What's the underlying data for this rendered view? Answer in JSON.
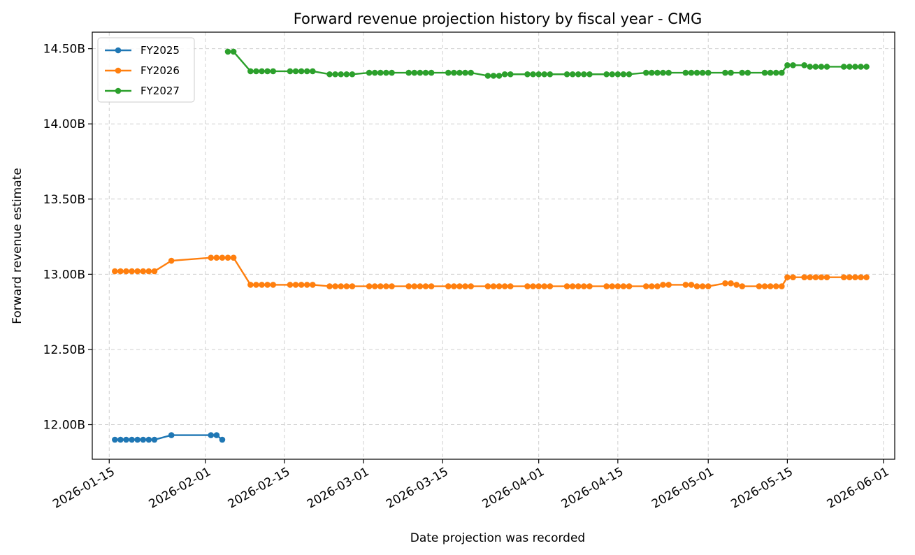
{
  "chart_data": {
    "type": "line",
    "title": "Forward revenue projection history by fiscal year - CMG",
    "xlabel": "Date projection was recorded",
    "ylabel": "Forward revenue estimate",
    "x_type": "date",
    "xlim": [
      "2026-01-12",
      "2026-06-03"
    ],
    "ylim": [
      11.77,
      14.61
    ],
    "y_unit_suffix": "B",
    "x_ticks": [
      "2026-01-15",
      "2026-02-01",
      "2026-02-15",
      "2026-03-01",
      "2026-03-15",
      "2026-04-01",
      "2026-04-15",
      "2026-05-01",
      "2026-05-15",
      "2026-06-01"
    ],
    "y_ticks": [
      12.0,
      12.5,
      13.0,
      13.5,
      14.0,
      14.5
    ],
    "y_tick_labels": [
      "12.00B",
      "12.50B",
      "13.00B",
      "13.50B",
      "14.00B",
      "14.50B"
    ],
    "grid": true,
    "legend_position": "top-left",
    "series": [
      {
        "name": "FY2025",
        "color": "#1f77b4",
        "points": [
          [
            "2026-01-16",
            11.9
          ],
          [
            "2026-01-17",
            11.9
          ],
          [
            "2026-01-18",
            11.9
          ],
          [
            "2026-01-19",
            11.9
          ],
          [
            "2026-01-20",
            11.9
          ],
          [
            "2026-01-21",
            11.9
          ],
          [
            "2026-01-22",
            11.9
          ],
          [
            "2026-01-23",
            11.9
          ],
          [
            "2026-01-26",
            11.93
          ],
          [
            "2026-02-02",
            11.93
          ],
          [
            "2026-02-03",
            11.93
          ],
          [
            "2026-02-04",
            11.9
          ]
        ]
      },
      {
        "name": "FY2026",
        "color": "#ff7f0e",
        "points": [
          [
            "2026-01-16",
            13.02
          ],
          [
            "2026-01-17",
            13.02
          ],
          [
            "2026-01-18",
            13.02
          ],
          [
            "2026-01-19",
            13.02
          ],
          [
            "2026-01-20",
            13.02
          ],
          [
            "2026-01-21",
            13.02
          ],
          [
            "2026-01-22",
            13.02
          ],
          [
            "2026-01-23",
            13.02
          ],
          [
            "2026-01-26",
            13.09
          ],
          [
            "2026-02-02",
            13.11
          ],
          [
            "2026-02-03",
            13.11
          ],
          [
            "2026-02-04",
            13.11
          ],
          [
            "2026-02-05",
            13.11
          ],
          [
            "2026-02-06",
            13.11
          ],
          [
            "2026-02-09",
            12.93
          ],
          [
            "2026-02-10",
            12.93
          ],
          [
            "2026-02-11",
            12.93
          ],
          [
            "2026-02-12",
            12.93
          ],
          [
            "2026-02-13",
            12.93
          ],
          [
            "2026-02-16",
            12.93
          ],
          [
            "2026-02-17",
            12.93
          ],
          [
            "2026-02-18",
            12.93
          ],
          [
            "2026-02-19",
            12.93
          ],
          [
            "2026-02-20",
            12.93
          ],
          [
            "2026-02-23",
            12.92
          ],
          [
            "2026-02-24",
            12.92
          ],
          [
            "2026-02-25",
            12.92
          ],
          [
            "2026-02-26",
            12.92
          ],
          [
            "2026-02-27",
            12.92
          ],
          [
            "2026-03-02",
            12.92
          ],
          [
            "2026-03-03",
            12.92
          ],
          [
            "2026-03-04",
            12.92
          ],
          [
            "2026-03-05",
            12.92
          ],
          [
            "2026-03-06",
            12.92
          ],
          [
            "2026-03-09",
            12.92
          ],
          [
            "2026-03-10",
            12.92
          ],
          [
            "2026-03-11",
            12.92
          ],
          [
            "2026-03-12",
            12.92
          ],
          [
            "2026-03-13",
            12.92
          ],
          [
            "2026-03-16",
            12.92
          ],
          [
            "2026-03-17",
            12.92
          ],
          [
            "2026-03-18",
            12.92
          ],
          [
            "2026-03-19",
            12.92
          ],
          [
            "2026-03-20",
            12.92
          ],
          [
            "2026-03-23",
            12.92
          ],
          [
            "2026-03-24",
            12.92
          ],
          [
            "2026-03-25",
            12.92
          ],
          [
            "2026-03-26",
            12.92
          ],
          [
            "2026-03-27",
            12.92
          ],
          [
            "2026-03-30",
            12.92
          ],
          [
            "2026-03-31",
            12.92
          ],
          [
            "2026-04-01",
            12.92
          ],
          [
            "2026-04-02",
            12.92
          ],
          [
            "2026-04-03",
            12.92
          ],
          [
            "2026-04-06",
            12.92
          ],
          [
            "2026-04-07",
            12.92
          ],
          [
            "2026-04-08",
            12.92
          ],
          [
            "2026-04-09",
            12.92
          ],
          [
            "2026-04-10",
            12.92
          ],
          [
            "2026-04-13",
            12.92
          ],
          [
            "2026-04-14",
            12.92
          ],
          [
            "2026-04-15",
            12.92
          ],
          [
            "2026-04-16",
            12.92
          ],
          [
            "2026-04-17",
            12.92
          ],
          [
            "2026-04-20",
            12.92
          ],
          [
            "2026-04-21",
            12.92
          ],
          [
            "2026-04-22",
            12.92
          ],
          [
            "2026-04-23",
            12.93
          ],
          [
            "2026-04-24",
            12.93
          ],
          [
            "2026-04-27",
            12.93
          ],
          [
            "2026-04-28",
            12.93
          ],
          [
            "2026-04-29",
            12.92
          ],
          [
            "2026-04-30",
            12.92
          ],
          [
            "2026-05-01",
            12.92
          ],
          [
            "2026-05-04",
            12.94
          ],
          [
            "2026-05-05",
            12.94
          ],
          [
            "2026-05-06",
            12.93
          ],
          [
            "2026-05-07",
            12.92
          ],
          [
            "2026-05-10",
            12.92
          ],
          [
            "2026-05-11",
            12.92
          ],
          [
            "2026-05-12",
            12.92
          ],
          [
            "2026-05-13",
            12.92
          ],
          [
            "2026-05-14",
            12.92
          ],
          [
            "2026-05-15",
            12.98
          ],
          [
            "2026-05-16",
            12.98
          ],
          [
            "2026-05-18",
            12.98
          ],
          [
            "2026-05-19",
            12.98
          ],
          [
            "2026-05-20",
            12.98
          ],
          [
            "2026-05-21",
            12.98
          ],
          [
            "2026-05-22",
            12.98
          ],
          [
            "2026-05-25",
            12.98
          ],
          [
            "2026-05-26",
            12.98
          ],
          [
            "2026-05-27",
            12.98
          ],
          [
            "2026-05-28",
            12.98
          ],
          [
            "2026-05-29",
            12.98
          ]
        ]
      },
      {
        "name": "FY2027",
        "color": "#2ca02c",
        "points": [
          [
            "2026-02-05",
            14.48
          ],
          [
            "2026-02-06",
            14.48
          ],
          [
            "2026-02-09",
            14.35
          ],
          [
            "2026-02-10",
            14.35
          ],
          [
            "2026-02-11",
            14.35
          ],
          [
            "2026-02-12",
            14.35
          ],
          [
            "2026-02-13",
            14.35
          ],
          [
            "2026-02-16",
            14.35
          ],
          [
            "2026-02-17",
            14.35
          ],
          [
            "2026-02-18",
            14.35
          ],
          [
            "2026-02-19",
            14.35
          ],
          [
            "2026-02-20",
            14.35
          ],
          [
            "2026-02-23",
            14.33
          ],
          [
            "2026-02-24",
            14.33
          ],
          [
            "2026-02-25",
            14.33
          ],
          [
            "2026-02-26",
            14.33
          ],
          [
            "2026-02-27",
            14.33
          ],
          [
            "2026-03-02",
            14.34
          ],
          [
            "2026-03-03",
            14.34
          ],
          [
            "2026-03-04",
            14.34
          ],
          [
            "2026-03-05",
            14.34
          ],
          [
            "2026-03-06",
            14.34
          ],
          [
            "2026-03-09",
            14.34
          ],
          [
            "2026-03-10",
            14.34
          ],
          [
            "2026-03-11",
            14.34
          ],
          [
            "2026-03-12",
            14.34
          ],
          [
            "2026-03-13",
            14.34
          ],
          [
            "2026-03-16",
            14.34
          ],
          [
            "2026-03-17",
            14.34
          ],
          [
            "2026-03-18",
            14.34
          ],
          [
            "2026-03-19",
            14.34
          ],
          [
            "2026-03-20",
            14.34
          ],
          [
            "2026-03-23",
            14.32
          ],
          [
            "2026-03-24",
            14.32
          ],
          [
            "2026-03-25",
            14.32
          ],
          [
            "2026-03-26",
            14.33
          ],
          [
            "2026-03-27",
            14.33
          ],
          [
            "2026-03-30",
            14.33
          ],
          [
            "2026-03-31",
            14.33
          ],
          [
            "2026-04-01",
            14.33
          ],
          [
            "2026-04-02",
            14.33
          ],
          [
            "2026-04-03",
            14.33
          ],
          [
            "2026-04-06",
            14.33
          ],
          [
            "2026-04-07",
            14.33
          ],
          [
            "2026-04-08",
            14.33
          ],
          [
            "2026-04-09",
            14.33
          ],
          [
            "2026-04-10",
            14.33
          ],
          [
            "2026-04-13",
            14.33
          ],
          [
            "2026-04-14",
            14.33
          ],
          [
            "2026-04-15",
            14.33
          ],
          [
            "2026-04-16",
            14.33
          ],
          [
            "2026-04-17",
            14.33
          ],
          [
            "2026-04-20",
            14.34
          ],
          [
            "2026-04-21",
            14.34
          ],
          [
            "2026-04-22",
            14.34
          ],
          [
            "2026-04-23",
            14.34
          ],
          [
            "2026-04-24",
            14.34
          ],
          [
            "2026-04-27",
            14.34
          ],
          [
            "2026-04-28",
            14.34
          ],
          [
            "2026-04-29",
            14.34
          ],
          [
            "2026-04-30",
            14.34
          ],
          [
            "2026-05-01",
            14.34
          ],
          [
            "2026-05-04",
            14.34
          ],
          [
            "2026-05-05",
            14.34
          ],
          [
            "2026-05-07",
            14.34
          ],
          [
            "2026-05-08",
            14.34
          ],
          [
            "2026-05-11",
            14.34
          ],
          [
            "2026-05-12",
            14.34
          ],
          [
            "2026-05-13",
            14.34
          ],
          [
            "2026-05-14",
            14.34
          ],
          [
            "2026-05-15",
            14.39
          ],
          [
            "2026-05-16",
            14.39
          ],
          [
            "2026-05-18",
            14.39
          ],
          [
            "2026-05-19",
            14.38
          ],
          [
            "2026-05-20",
            14.38
          ],
          [
            "2026-05-21",
            14.38
          ],
          [
            "2026-05-22",
            14.38
          ],
          [
            "2026-05-25",
            14.38
          ],
          [
            "2026-05-26",
            14.38
          ],
          [
            "2026-05-27",
            14.38
          ],
          [
            "2026-05-28",
            14.38
          ],
          [
            "2026-05-29",
            14.38
          ]
        ]
      }
    ]
  }
}
